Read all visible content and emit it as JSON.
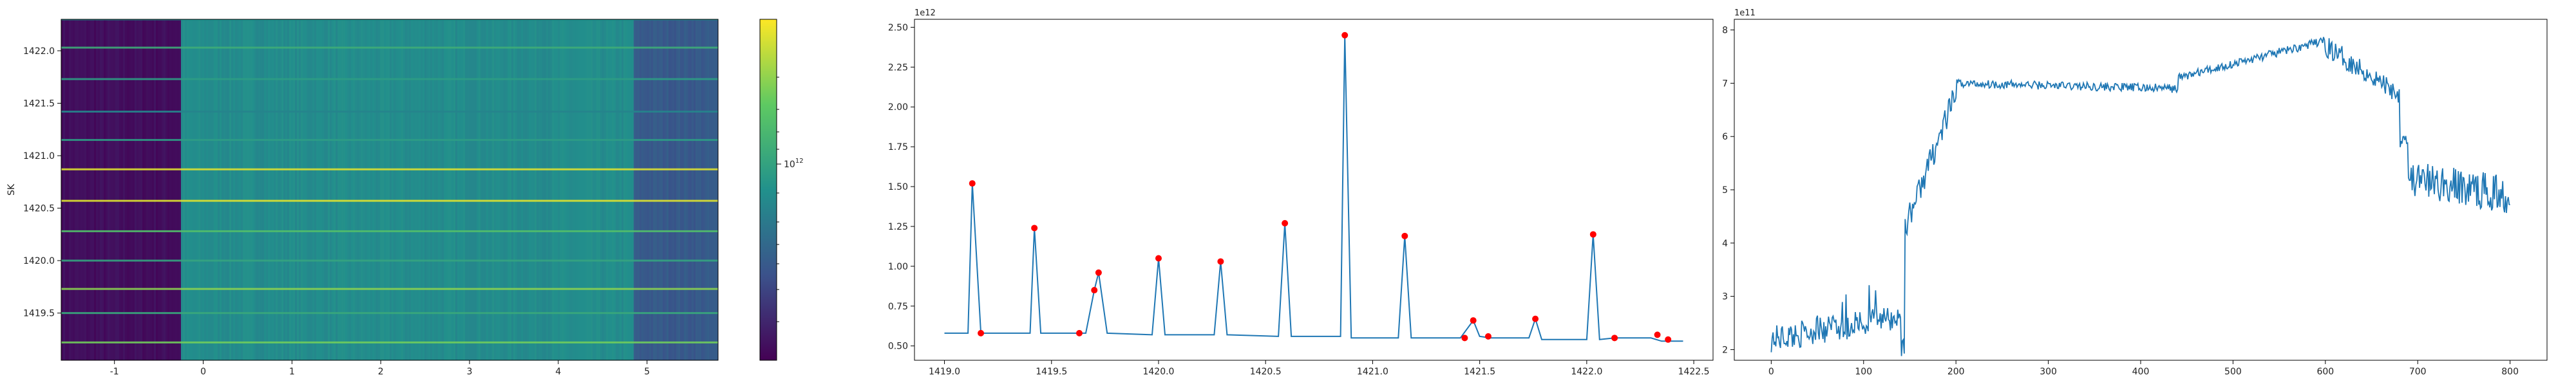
{
  "chart_data": [
    {
      "type": "heatmap",
      "ylabel": "SK",
      "xlabel": "",
      "xlim": [
        -1.6,
        5.8
      ],
      "ylim": [
        1419.05,
        1422.3
      ],
      "x_ticks": [
        "-1",
        "0",
        "1",
        "2",
        "3",
        "4",
        "5"
      ],
      "y_ticks": [
        "1419.5",
        "1420.0",
        "1420.5",
        "1421.0",
        "1421.5",
        "1422.0"
      ],
      "colormap": "viridis",
      "colorbar": {
        "scale": "log",
        "tick_label": "10",
        "tick_exp": "12"
      },
      "bands": [
        {
          "x_from": -1.6,
          "x_to": -0.25,
          "level": 0.04
        },
        {
          "x_from": -0.25,
          "x_to": 4.85,
          "level": 0.48
        },
        {
          "x_from": 4.85,
          "x_to": 5.8,
          "level": 0.28
        }
      ],
      "bright_rows": [
        1419.22,
        1419.5,
        1419.73,
        1420.0,
        1420.28,
        1420.57,
        1420.87,
        1421.15,
        1421.42,
        1421.73,
        1422.03,
        1422.3
      ],
      "bright_row_levels": [
        0.78,
        0.6,
        0.82,
        0.58,
        0.7,
        0.95,
        0.95,
        0.55,
        0.45,
        0.55,
        0.62,
        0.5
      ]
    },
    {
      "type": "line",
      "x": [
        1419.0,
        1419.11,
        1419.13,
        1419.17,
        1419.4,
        1419.42,
        1419.45,
        1419.62,
        1419.66,
        1419.7,
        1419.72,
        1419.76,
        1419.97,
        1420.0,
        1420.03,
        1420.26,
        1420.29,
        1420.32,
        1420.56,
        1420.59,
        1420.62,
        1420.85,
        1420.87,
        1420.9,
        1421.12,
        1421.15,
        1421.18,
        1421.41,
        1421.47,
        1421.5,
        1421.55,
        1421.73,
        1421.76,
        1421.79,
        1422.0,
        1422.03,
        1422.06,
        1422.13,
        1422.3,
        1422.35,
        1422.45
      ],
      "y": [
        580000000000.0,
        580000000000.0,
        1520000000000.0,
        580000000000.0,
        580000000000.0,
        1240000000000.0,
        580000000000.0,
        580000000000.0,
        580000000000.0,
        850000000000.0,
        960000000000.0,
        580000000000.0,
        570000000000.0,
        1050000000000.0,
        570000000000.0,
        570000000000.0,
        1030000000000.0,
        570000000000.0,
        560000000000.0,
        1270000000000.0,
        560000000000.0,
        560000000000.0,
        2450000000000.0,
        550000000000.0,
        550000000000.0,
        1190000000000.0,
        550000000000.0,
        550000000000.0,
        660000000000.0,
        560000000000.0,
        550000000000.0,
        550000000000.0,
        670000000000.0,
        540000000000.0,
        540000000000.0,
        1200000000000.0,
        540000000000.0,
        550000000000.0,
        550000000000.0,
        530000000000.0,
        530000000000.0
      ],
      "peaks": [
        {
          "x": 1419.13,
          "y": 1520000000000.0
        },
        {
          "x": 1419.17,
          "y": 580000000000.0
        },
        {
          "x": 1419.42,
          "y": 1240000000000.0
        },
        {
          "x": 1419.63,
          "y": 580000000000.0
        },
        {
          "x": 1419.7,
          "y": 850000000000.0
        },
        {
          "x": 1419.72,
          "y": 960000000000.0
        },
        {
          "x": 1420.0,
          "y": 1050000000000.0
        },
        {
          "x": 1420.29,
          "y": 1030000000000.0
        },
        {
          "x": 1420.59,
          "y": 1270000000000.0
        },
        {
          "x": 1420.87,
          "y": 2450000000000.0
        },
        {
          "x": 1421.15,
          "y": 1190000000000.0
        },
        {
          "x": 1421.43,
          "y": 550000000000.0
        },
        {
          "x": 1421.47,
          "y": 660000000000.0
        },
        {
          "x": 1421.54,
          "y": 560000000000.0
        },
        {
          "x": 1421.76,
          "y": 670000000000.0
        },
        {
          "x": 1422.03,
          "y": 1200000000000.0
        },
        {
          "x": 1422.13,
          "y": 550000000000.0
        },
        {
          "x": 1422.33,
          "y": 570000000000.0
        },
        {
          "x": 1422.38,
          "y": 540000000000.0
        }
      ],
      "xlim": [
        1418.86,
        1422.59
      ],
      "ylim": [
        410000000000.0,
        2550000000000.0
      ],
      "x_ticks": [
        "1419.0",
        "1419.5",
        "1420.0",
        "1420.5",
        "1421.0",
        "1421.5",
        "1422.0",
        "1422.5"
      ],
      "y_ticks": [
        "0.50",
        "0.75",
        "1.00",
        "1.25",
        "1.50",
        "1.75",
        "2.00",
        "2.25",
        "2.50"
      ],
      "offset_text": "1e12",
      "line_color": "#1f77b4",
      "marker_color": "#ff0000",
      "title": "",
      "xlabel": "",
      "ylabel": ""
    },
    {
      "type": "line",
      "segments": [
        {
          "x_from": 0,
          "x_to": 140,
          "y_from": 220000000000.0,
          "y_to": 260000000000.0
        },
        {
          "x_from": 145,
          "x_to": 200,
          "y_from": 430000000000.0,
          "y_to": 680000000000.0
        },
        {
          "x_from": 200,
          "x_to": 440,
          "y_from": 700000000000.0,
          "y_to": 690000000000.0
        },
        {
          "x_from": 440,
          "x_to": 600,
          "y_from": 710000000000.0,
          "y_to": 780000000000.0
        },
        {
          "x_from": 600,
          "x_to": 680,
          "y_from": 770000000000.0,
          "y_to": 680000000000.0
        },
        {
          "x_from": 690,
          "x_to": 800,
          "y_from": 520000000000.0,
          "y_to": 490000000000.0
        }
      ],
      "xlim": [
        -40,
        840
      ],
      "ylim": [
        180000000000.0,
        820000000000.0
      ],
      "x_ticks": [
        "0",
        "100",
        "200",
        "300",
        "400",
        "500",
        "600",
        "700",
        "800"
      ],
      "y_ticks": [
        "2",
        "3",
        "4",
        "5",
        "6",
        "7",
        "8"
      ],
      "offset_text": "1e11",
      "line_color": "#1f77b4",
      "title": "",
      "xlabel": "",
      "ylabel": ""
    }
  ]
}
